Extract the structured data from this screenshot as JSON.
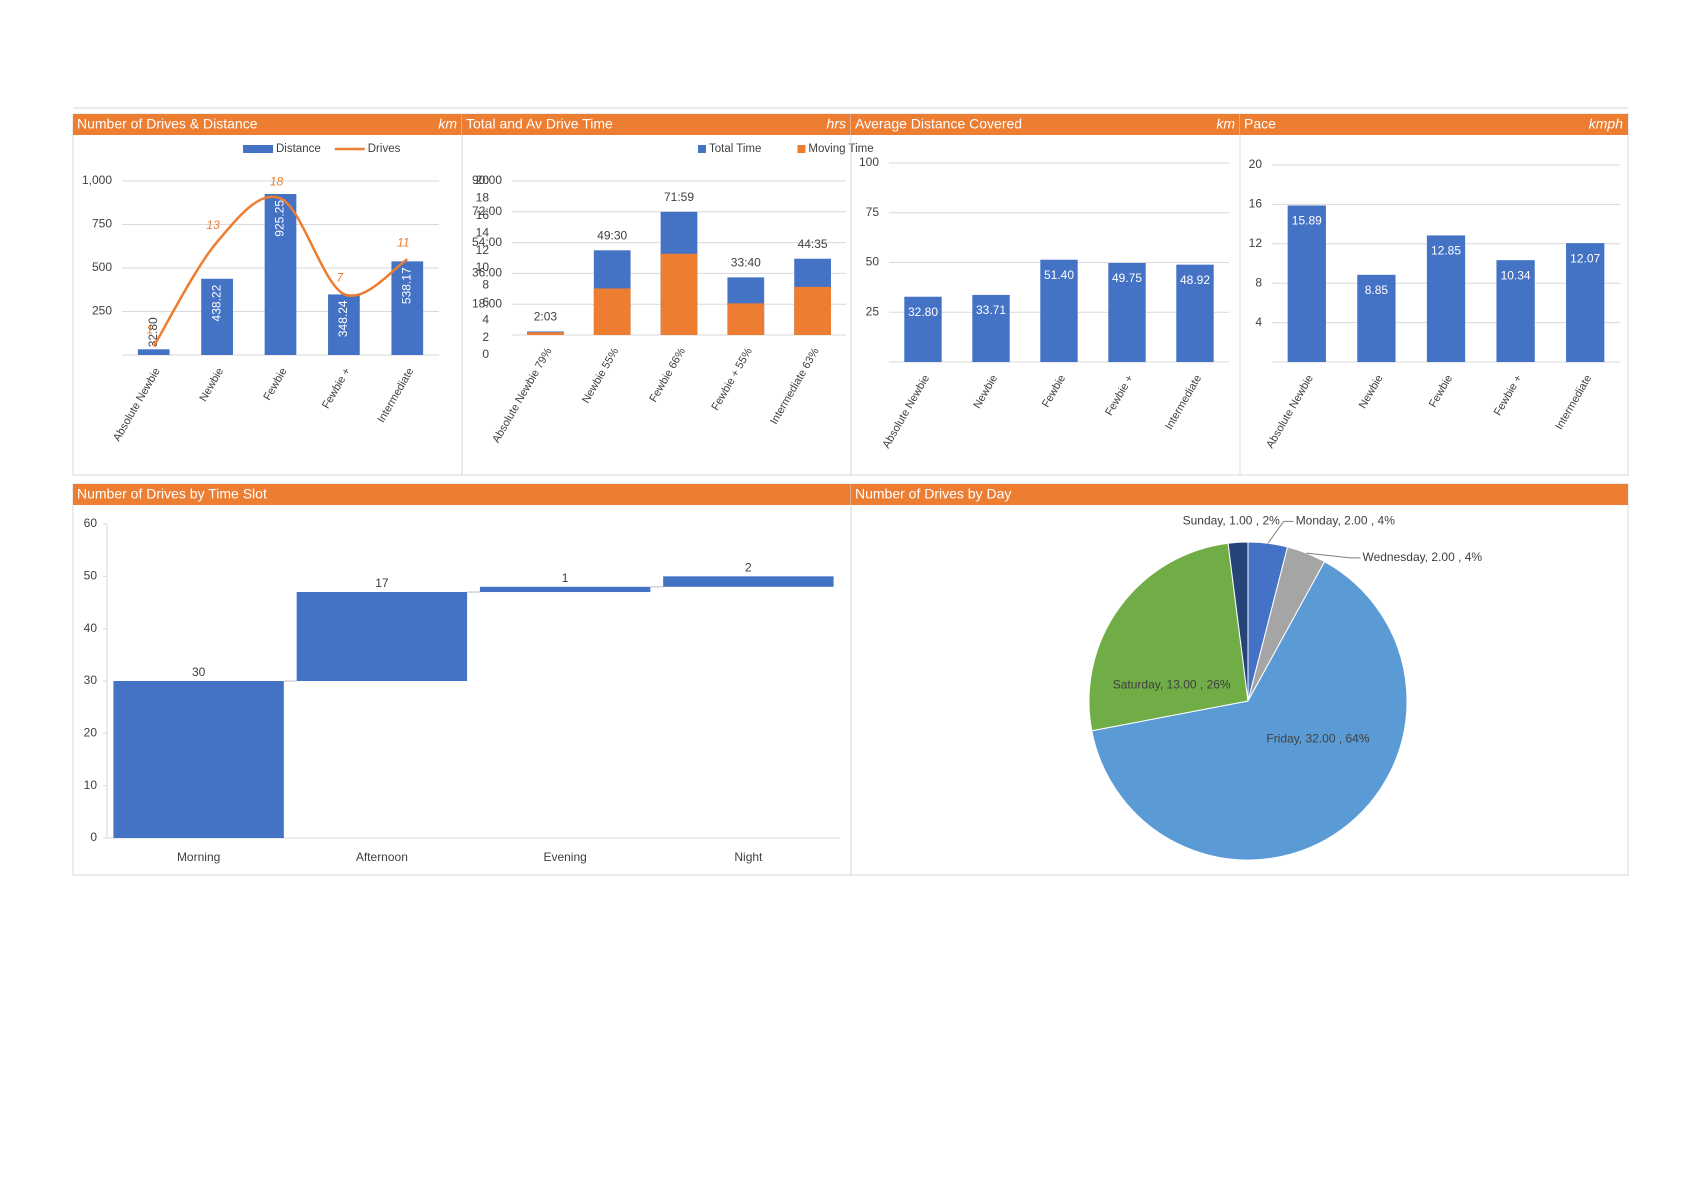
{
  "chart_data": [
    {
      "type": "bar_line",
      "title": "Number of Drives & Distance",
      "unit": "km",
      "categories": [
        "Absolute Newbie",
        "Newbie",
        "Fewbie",
        "Fewbie +",
        "Intermediate"
      ],
      "series": [
        {
          "name": "Distance",
          "type": "bar",
          "color": "#4472c4",
          "values": [
            32.8,
            438.22,
            925.25,
            348.24,
            538.17
          ],
          "value_labels": [
            "32.80",
            "438.22",
            "925.25",
            "348.24",
            "538.17"
          ]
        },
        {
          "name": "Drives",
          "type": "line",
          "smooth": true,
          "axis": "y2",
          "color": "#ed7d31",
          "values": [
            1,
            13,
            18,
            7,
            11
          ]
        }
      ],
      "ylim": [
        0,
        1000
      ],
      "yticks": [
        250,
        500,
        750,
        {
          "value": 1000,
          "label": "1,000"
        }
      ],
      "y2lim": [
        0,
        20
      ],
      "y2ticks": [
        0,
        2,
        4,
        6,
        8,
        10,
        12,
        14,
        16,
        18,
        20
      ],
      "grid": true,
      "legend": "top"
    },
    {
      "type": "bar",
      "overlap": true,
      "title": "Total and Av Drive Time",
      "unit": "hrs",
      "categories": [
        "Absolute Newbie 79%",
        "Newbie 55%",
        "Fewbie 66%",
        "Fewbie + 55%",
        "Intermediate 63%"
      ],
      "series": [
        {
          "name": "Total Time",
          "color": "#4472c4",
          "values": [
            2.05,
            49.5,
            71.98,
            33.67,
            44.58
          ],
          "value_labels": [
            "2:03",
            "49:30",
            "71:59",
            "33:40",
            "44:35"
          ]
        },
        {
          "name": "Moving Time",
          "color": "#ed7d31",
          "values": [
            1.62,
            27.2,
            47.5,
            18.5,
            28.1
          ]
        }
      ],
      "ylim": [
        0,
        90
      ],
      "yticks": [
        {
          "value": 18,
          "label": "18:00"
        },
        {
          "value": 36,
          "label": "36:00"
        },
        {
          "value": 54,
          "label": "54:00"
        },
        {
          "value": 72,
          "label": "72:00"
        },
        {
          "value": 90,
          "label": "90:00"
        }
      ],
      "grid": true,
      "legend": "top-right"
    },
    {
      "type": "bar",
      "title": "Average Distance Covered",
      "unit": "km",
      "categories": [
        "Absolute Newbie",
        "Newbie",
        "Fewbie",
        "Fewbie +",
        "Intermediate"
      ],
      "series": [
        {
          "name": "Average Distance",
          "color": "#4472c4",
          "values": [
            32.8,
            33.71,
            51.4,
            49.75,
            48.92
          ],
          "value_labels": [
            "32.80",
            "33.71",
            "51.40",
            "49.75",
            "48.92"
          ]
        }
      ],
      "ylim": [
        0,
        100
      ],
      "yticks": [
        25,
        50,
        75,
        100
      ],
      "grid": true
    },
    {
      "type": "bar",
      "title": "Pace",
      "unit": "kmph",
      "categories": [
        "Absolute Newbie",
        "Newbie",
        "Fewbie",
        "Fewbie +",
        "Intermediate"
      ],
      "series": [
        {
          "name": "Pace",
          "color": "#4472c4",
          "values": [
            15.89,
            8.85,
            12.85,
            10.34,
            12.07
          ]
        }
      ],
      "ylim": [
        0,
        20
      ],
      "yticks": [
        4,
        8,
        12,
        16,
        20
      ],
      "grid": true
    },
    {
      "type": "waterfall",
      "title": "Number of Drives by Time Slot",
      "categories": [
        "Morning",
        "Afternoon",
        "Evening",
        "Night"
      ],
      "values": [
        30,
        17,
        1,
        2
      ],
      "color": "#4472c4",
      "ylim": [
        0,
        60
      ],
      "yticks": [
        0,
        10,
        20,
        30,
        40,
        50,
        60
      ],
      "grid": false
    },
    {
      "type": "pie",
      "title": "Number of Drives by Day",
      "values": [
        2,
        2,
        32,
        13,
        1
      ],
      "data_labels": [
        "Monday, 2.00 , 4%",
        "Wednesday, 2.00 , 4%",
        "Friday, 32.00 , 64%",
        "Saturday, 13.00 , 26%",
        "Sunday, 1.00 , 2%"
      ],
      "colors": [
        "#4472c4",
        "#a5a5a5",
        "#5b9bd5",
        "#70ad47",
        "#264478"
      ]
    }
  ]
}
